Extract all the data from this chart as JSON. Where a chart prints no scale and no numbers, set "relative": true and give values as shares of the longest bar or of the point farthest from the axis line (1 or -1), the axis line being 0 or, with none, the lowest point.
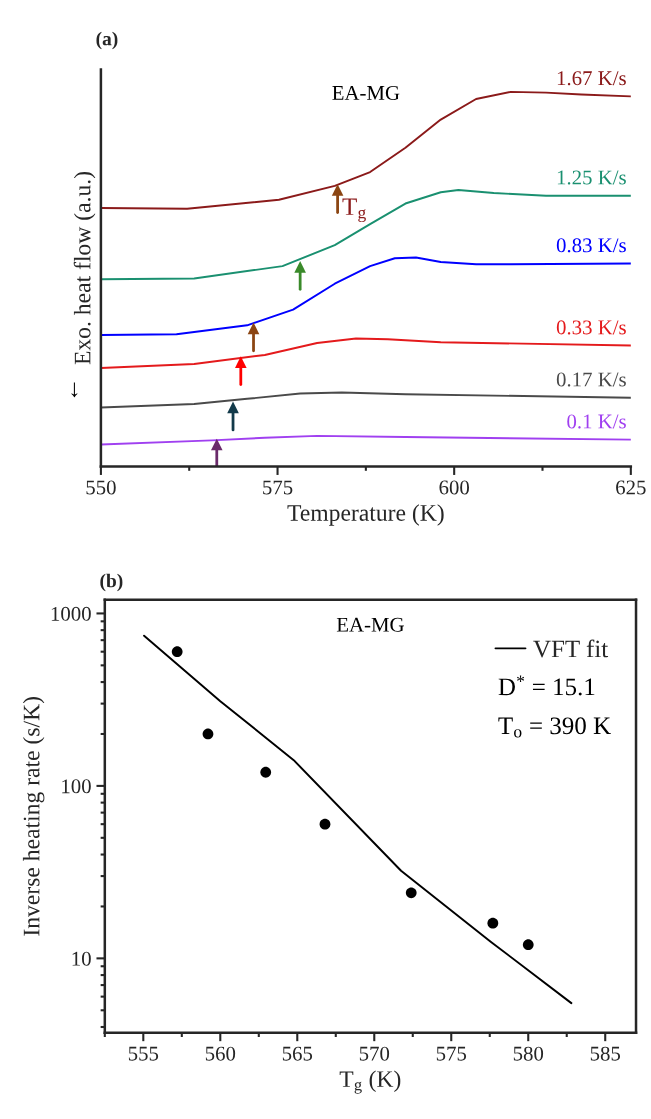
{
  "chart_data": [
    {
      "type": "line",
      "title": "(a)",
      "xlabel": "Temperature (K)",
      "ylabel": "Exo. heat flow (a.u.)",
      "relative": true,
      "xlim": [
        550,
        625
      ],
      "xticks": [
        550,
        575,
        600,
        625
      ],
      "grid": false,
      "legend": false,
      "annotations": [
        "EA-MG",
        "↓",
        "T$_{g}$"
      ],
      "series": [
        {
          "name": "1.67 K/s",
          "color": "#8b1a1a",
          "x": [
            550,
            562.2,
            575.2,
            583.1,
            588.1,
            593.1,
            598.1,
            603.1,
            608.0,
            613.0,
            618.0,
            625
          ],
          "values": [
            0.69,
            0.688,
            0.712,
            0.749,
            0.786,
            0.851,
            0.926,
            0.981,
            1.0,
            0.998,
            0.993,
            0.988
          ]
        },
        {
          "name": "1.25 K/s",
          "color": "#1a9070",
          "x": [
            550,
            563.2,
            575.7,
            583.1,
            588.1,
            593.1,
            598.1,
            600.6,
            605.6,
            613.0,
            625
          ],
          "values": [
            0.5,
            0.502,
            0.535,
            0.591,
            0.647,
            0.702,
            0.732,
            0.738,
            0.73,
            0.723,
            0.723
          ]
        },
        {
          "name": "0.83 K/s",
          "color": "#0000ff",
          "x": [
            550,
            560.7,
            570.7,
            577.2,
            583.1,
            588.1,
            591.6,
            594.6,
            598.1,
            603.1,
            608.0,
            625
          ],
          "values": [
            0.351,
            0.353,
            0.377,
            0.419,
            0.488,
            0.535,
            0.556,
            0.558,
            0.546,
            0.54,
            0.54,
            0.542
          ]
        },
        {
          "name": "0.33 K/s",
          "color": "#e41a1c",
          "x": [
            550,
            563.2,
            573.2,
            580.6,
            586.1,
            590.6,
            598.1,
            625
          ],
          "values": [
            0.263,
            0.274,
            0.298,
            0.33,
            0.342,
            0.34,
            0.332,
            0.323
          ]
        },
        {
          "name": "0.17 K/s",
          "color": "#4a4a4a",
          "x": [
            550,
            563.2,
            570.7,
            578.2,
            584.1,
            593.1,
            625
          ],
          "values": [
            0.158,
            0.167,
            0.181,
            0.195,
            0.198,
            0.193,
            0.184
          ]
        },
        {
          "name": "0.1 K/s",
          "color": "#a040f0",
          "x": [
            550,
            565.7,
            573.2,
            580.6,
            593.1,
            625
          ],
          "values": [
            0.059,
            0.07,
            0.077,
            0.082,
            0.079,
            0.072
          ]
        },
        {
          "type": "scatter",
          "marker": "triangle",
          "x": [
            583.5,
            578.2,
            571.6,
            569.8,
            568.7,
            566.4
          ],
          "values": [
            0.738,
            0.533,
            0.369,
            0.279,
            0.158,
            0.059
          ],
          "colors": [
            "#8b4513",
            "#3a8a2a",
            "#8b4513",
            "#ff0000",
            "#123a4a",
            "#6a2a6a"
          ]
        }
      ]
    },
    {
      "type": "scatter",
      "xlabel": "T$_{g}$ (K)",
      "ylabel": "Inverse heating rate (s/K)",
      "title": "(b)",
      "log": "y",
      "xlim": [
        552.5,
        587
      ],
      "ylim": [
        3.7,
        1200
      ],
      "xticks": [
        555,
        560,
        565,
        570,
        575,
        580,
        585
      ],
      "yticks": [
        10,
        100,
        1000
      ],
      "grid": false,
      "legend": "top right",
      "annotations": [
        "EA-MG",
        "D$^{*}$ = 15.1",
        "T$_{o}$ = 390 K"
      ],
      "series": [
        {
          "color": "#000000",
          "marker": "circle",
          "x": [
            557.2,
            559.2,
            562.95,
            566.8,
            572.4,
            577.7,
            580.0
          ],
          "values": [
            600,
            200,
            120,
            60,
            24,
            16,
            12
          ]
        },
        {
          "type": "line",
          "name": "VFT fit",
          "color": "#000000",
          "marker": "none",
          "x": [
            555.05,
            560,
            564.77,
            571.74,
            577.56,
            582.8
          ],
          "values": [
            743,
            310,
            141,
            32.2,
            12.5,
            5.5
          ]
        }
      ]
    }
  ]
}
